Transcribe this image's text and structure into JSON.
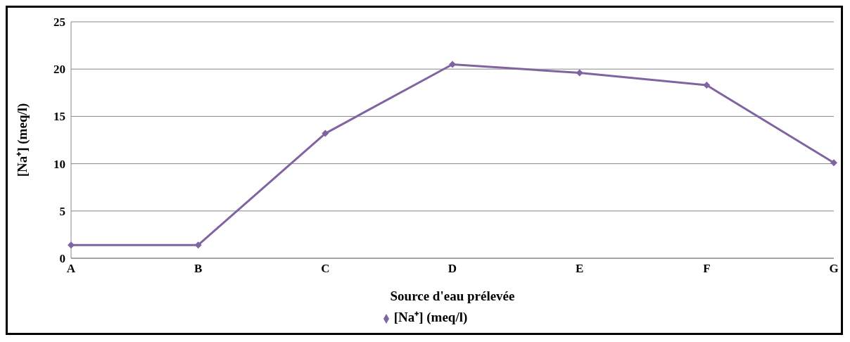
{
  "chart_data": {
    "type": "line",
    "xlabel": "Source d'eau prélevée",
    "ylabel": "[Na⁺] (meq/l)",
    "categories": [
      "A",
      "B",
      "C",
      "D",
      "E",
      "F",
      "G"
    ],
    "series": [
      {
        "name": "[Na⁺] (meq/l)",
        "color": "#8064a2",
        "values": [
          1.4,
          1.4,
          13.2,
          20.5,
          19.6,
          18.3,
          10.1
        ]
      }
    ],
    "ylim": [
      0,
      25
    ],
    "yticks": [
      0,
      5,
      10,
      15,
      20,
      25
    ],
    "grid": "y",
    "legend": "bottom",
    "marker": "diamond",
    "line_style": "solid"
  }
}
